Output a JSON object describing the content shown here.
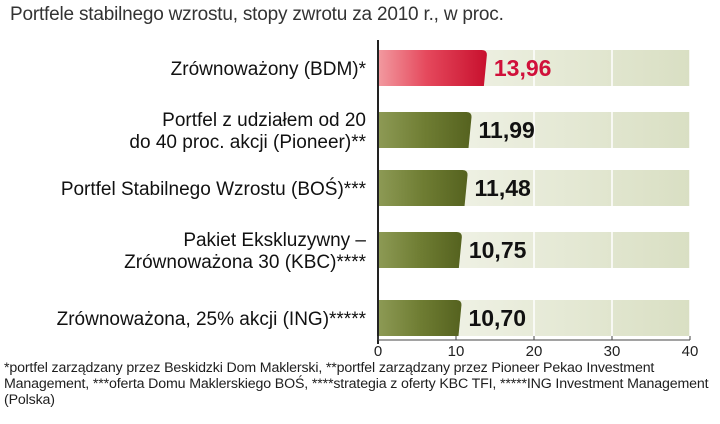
{
  "chart_data": {
    "type": "bar",
    "orientation": "horizontal",
    "title": "Portfele stabilnego wzrostu, stopy zwrotu za 2010 r., w proc.",
    "categories": [
      [
        "Zrównoważony (BDM)*"
      ],
      [
        "Portfel z udziałem od 20",
        "do 40 proc. akcji (Pioneer)**"
      ],
      [
        "Portfel Stabilnego Wzrostu (BOŚ)***"
      ],
      [
        "Pakiet Ekskluzywny –",
        "Zrównoważona 30 (KBC)****"
      ],
      [
        "Zrównoważona, 25% akcji (ING)*****"
      ]
    ],
    "values": [
      13.96,
      11.99,
      11.48,
      10.75,
      10.7
    ],
    "value_labels": [
      "13,96",
      "11,99",
      "11,48",
      "10,75",
      "10,70"
    ],
    "highlight_index": 0,
    "xlim": [
      0,
      40
    ],
    "xticks": [
      0,
      10,
      20,
      30,
      40
    ],
    "xtick_labels": [
      "0",
      "10",
      "20",
      "30",
      "40"
    ],
    "grid": true,
    "colors": {
      "highlight_bar": "#e0334a",
      "bar": "#6e7d32",
      "highlight_text": "#d0103a",
      "band_light": "#f2f4ea",
      "band_dark": "#dde2c9"
    }
  },
  "footnote": "*portfel zarządzany przez Beskidzki Dom Maklerski, **portfel zarządzany przez Pioneer Pekao Investment Management, ***oferta Domu Maklerskiego BOŚ, ****strategia z oferty KBC TFI, *****ING Investment Management (Polska)"
}
